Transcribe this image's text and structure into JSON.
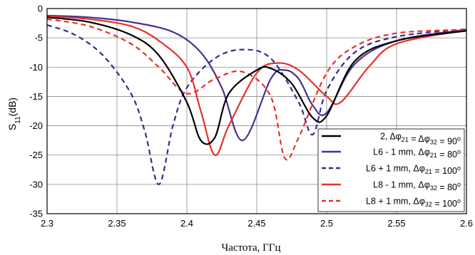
{
  "chart_data": {
    "type": "line",
    "title": "",
    "xlabel": "Частота, ГГц",
    "ylabel": "S11(dB)",
    "ylabel_main": "S",
    "ylabel_sub": "11",
    "ylabel_tail": "(dB)",
    "xlim": [
      2.3,
      2.6
    ],
    "ylim": [
      -35,
      0
    ],
    "xticks": [
      "2.3",
      "2.35",
      "2.4",
      "2.45",
      "2.5",
      "2.55",
      "2.6"
    ],
    "yticks": [
      "0",
      "-5",
      "-10",
      "-15",
      "-20",
      "-25",
      "-30",
      "-35"
    ],
    "grid": true,
    "legend_position": "lower-right",
    "series": [
      {
        "name": "2, Δφ21 = Δφ32 = 90°",
        "legend": {
          "pre": "2, Δφ",
          "s1": "21",
          "mid": " = Δφ",
          "s2": "32",
          "post": " = 90",
          "sup": "o"
        },
        "color": "#000000",
        "dash": "solid",
        "x": [
          2.3,
          2.33,
          2.36,
          2.38,
          2.4,
          2.41,
          2.42,
          2.43,
          2.45,
          2.46,
          2.475,
          2.49,
          2.5,
          2.52,
          2.55,
          2.6
        ],
        "y": [
          -1.5,
          -2.3,
          -4.5,
          -8.0,
          -16.0,
          -22.5,
          -22.0,
          -14.5,
          -10.5,
          -10.2,
          -12.8,
          -18.6,
          -18.3,
          -9.0,
          -5.5,
          -3.8
        ]
      },
      {
        "name": "L6 - 1 mm, Δφ21 = 80°",
        "legend": {
          "pre": "L6 - 1 mm, Δφ",
          "s1": "21",
          "mid": "",
          "s2": "",
          "post": " = 80",
          "sup": "o"
        },
        "color": "#4B2E8F",
        "dash": "solid",
        "x": [
          2.3,
          2.33,
          2.36,
          2.39,
          2.41,
          2.425,
          2.44,
          2.46,
          2.47,
          2.48,
          2.49,
          2.5,
          2.52,
          2.55,
          2.6
        ],
        "y": [
          -1.2,
          -1.5,
          -2.3,
          -4.0,
          -7.5,
          -13.5,
          -22.5,
          -12.0,
          -10.5,
          -12.0,
          -16.5,
          -17.8,
          -9.5,
          -5.5,
          -3.6
        ]
      },
      {
        "name": "L6 + 1 mm, Δφ21 = 100°",
        "legend": {
          "pre": "L6 + 1 mm, Δφ",
          "s1": "21",
          "mid": "",
          "s2": "",
          "post": " = 100",
          "sup": "o"
        },
        "color": "#3A2A8C",
        "dash": "dashed",
        "x": [
          2.3,
          2.32,
          2.34,
          2.36,
          2.37,
          2.38,
          2.39,
          2.4,
          2.42,
          2.44,
          2.46,
          2.48,
          2.49,
          2.5,
          2.52,
          2.55,
          2.6
        ],
        "y": [
          -2.8,
          -4.5,
          -8.0,
          -14.5,
          -21.0,
          -30.0,
          -20.0,
          -13.5,
          -8.5,
          -7.0,
          -8.5,
          -16.0,
          -21.5,
          -14.0,
          -7.5,
          -4.8,
          -3.5
        ]
      },
      {
        "name": "L8 - 1 mm, Δφ32 = 80°",
        "legend": {
          "pre": "L8 - 1 mm, Δφ",
          "s1": "32",
          "mid": "",
          "s2": "",
          "post": " = 80",
          "sup": "o"
        },
        "color": "#E8302A",
        "dash": "solid",
        "x": [
          2.3,
          2.33,
          2.36,
          2.38,
          2.4,
          2.41,
          2.42,
          2.43,
          2.45,
          2.465,
          2.48,
          2.5,
          2.51,
          2.53,
          2.55,
          2.6
        ],
        "y": [
          -1.3,
          -1.8,
          -3.0,
          -5.5,
          -10.0,
          -17.5,
          -25.0,
          -20.0,
          -11.0,
          -9.3,
          -10.5,
          -15.0,
          -16.0,
          -10.0,
          -6.0,
          -3.7
        ]
      },
      {
        "name": "L8 + 1 mm, Δφ32 = 100°",
        "legend": {
          "pre": "L8 + 1 mm, Δφ",
          "s1": "32",
          "mid": "",
          "s2": "",
          "post": " = 100",
          "sup": "o"
        },
        "color": "#E8302A",
        "dash": "dashed",
        "x": [
          2.3,
          2.33,
          2.36,
          2.38,
          2.4,
          2.42,
          2.44,
          2.46,
          2.47,
          2.48,
          2.5,
          2.52,
          2.55,
          2.6
        ],
        "y": [
          -1.8,
          -3.0,
          -6.0,
          -10.0,
          -14.5,
          -12.0,
          -10.8,
          -15.0,
          -25.5,
          -22.0,
          -11.0,
          -6.5,
          -4.2,
          -3.6
        ]
      }
    ]
  }
}
